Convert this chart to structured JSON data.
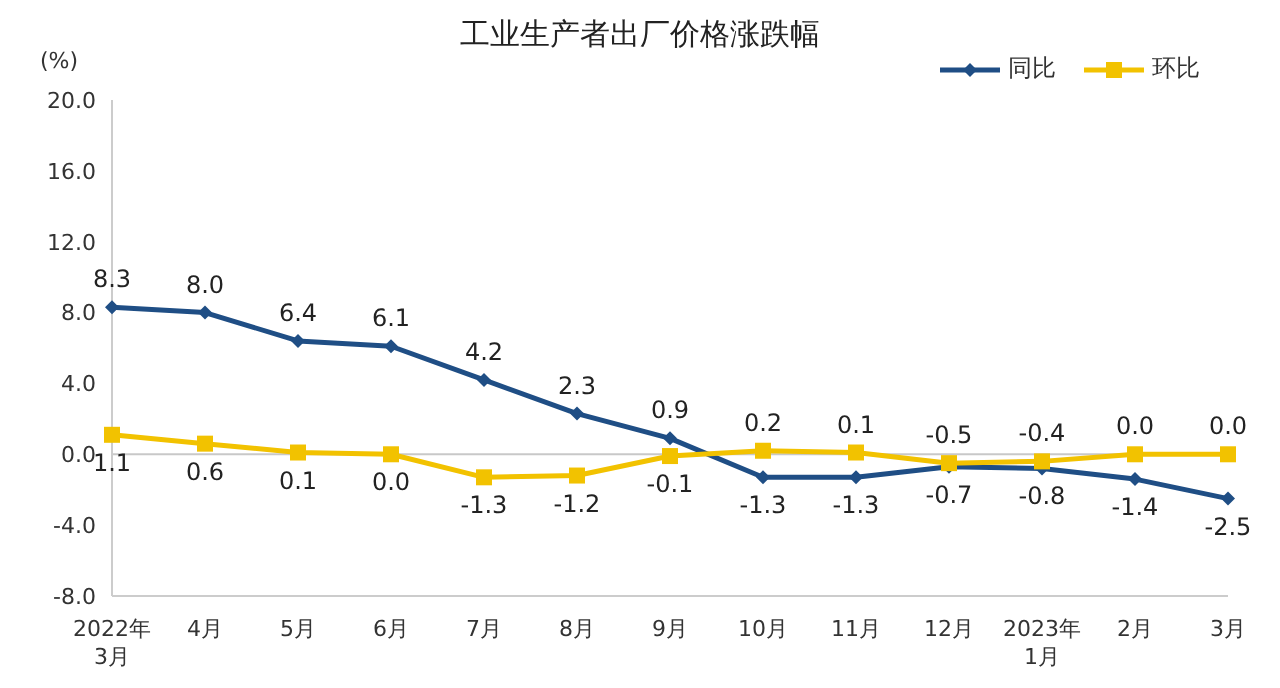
{
  "chart_data": {
    "type": "line",
    "title": "工业生产者出厂价格涨跌幅",
    "ylabel": "(%)",
    "categories": [
      "2022年\n3月",
      "4月",
      "5月",
      "6月",
      "7月",
      "8月",
      "9月",
      "10月",
      "11月",
      "12月",
      "2023年\n1月",
      "2月",
      "3月"
    ],
    "series": [
      {
        "name": "同比",
        "color": "#1f4e85",
        "marker": "diamond",
        "values": [
          8.3,
          8.0,
          6.4,
          6.1,
          4.2,
          2.3,
          0.9,
          -1.3,
          -1.3,
          -0.7,
          -0.8,
          -1.4,
          -2.5
        ],
        "value_labels": [
          "8.3",
          "8.0",
          "6.4",
          "6.1",
          "4.2",
          "2.3",
          "0.9",
          "-1.3",
          "-1.3",
          "-0.7",
          "-0.8",
          "-1.4",
          "-2.5"
        ]
      },
      {
        "name": "环比",
        "color": "#f2c200",
        "marker": "square",
        "values": [
          1.1,
          0.6,
          0.1,
          0.0,
          -1.3,
          -1.2,
          -0.1,
          0.2,
          0.1,
          -0.5,
          -0.4,
          0.0,
          0.0
        ],
        "value_labels": [
          "1.1",
          "0.6",
          "0.1",
          "0.0",
          "-1.3",
          "-1.2",
          "-0.1",
          "0.2",
          "0.1",
          "-0.5",
          "-0.4",
          "0.0",
          "0.0"
        ]
      }
    ],
    "ylim": [
      -8,
      20
    ],
    "yticks": [
      {
        "value": -8,
        "label": "-8.0"
      },
      {
        "value": -4,
        "label": "-4.0"
      },
      {
        "value": 0,
        "label": "0.0"
      },
      {
        "value": 4,
        "label": "4.0"
      },
      {
        "value": 8,
        "label": "8.0"
      },
      {
        "value": 12,
        "label": "12.0"
      },
      {
        "value": 16,
        "label": "16.0"
      },
      {
        "value": 20,
        "label": "20.0"
      }
    ],
    "ref_lines": [
      {
        "axis": "y",
        "value": 0,
        "color": "#c8c8c8"
      }
    ],
    "grid": false,
    "legend": "top right",
    "line_style": "solid"
  }
}
